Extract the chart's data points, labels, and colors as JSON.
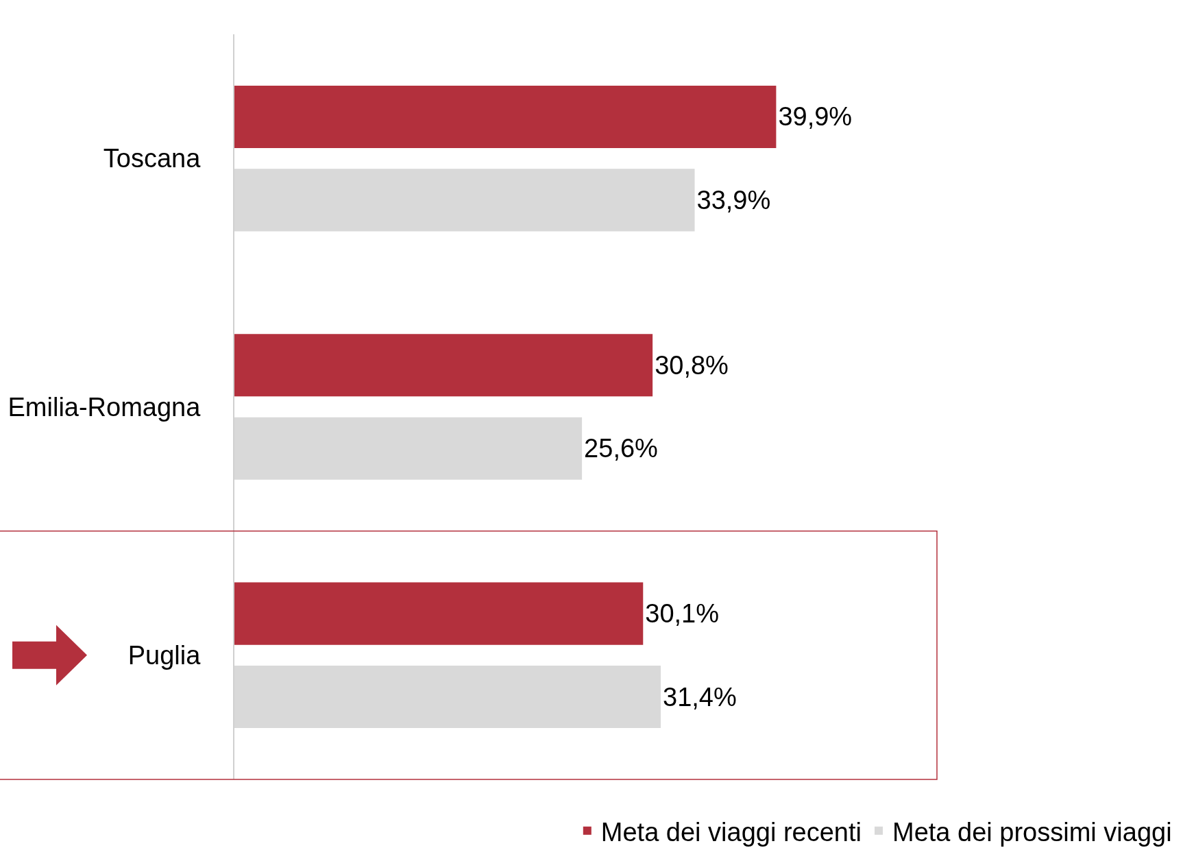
{
  "chart_data": {
    "type": "bar",
    "orientation": "horizontal",
    "categories": [
      "Toscana",
      "Emilia-Romagna",
      "Puglia"
    ],
    "series": [
      {
        "name": "Meta dei viaggi recenti",
        "color": "#b3303d",
        "values": [
          39.9,
          30.8,
          30.1
        ],
        "value_labels": [
          "39,9%",
          "30,8%",
          "30,1%"
        ]
      },
      {
        "name": "Meta dei prossimi viaggi",
        "color": "#d9d9d9",
        "values": [
          33.9,
          25.6,
          31.4
        ],
        "value_labels": [
          "33,9%",
          "25,6%",
          "31,4%"
        ]
      }
    ],
    "legend": "bottom",
    "grid": false
  }
}
